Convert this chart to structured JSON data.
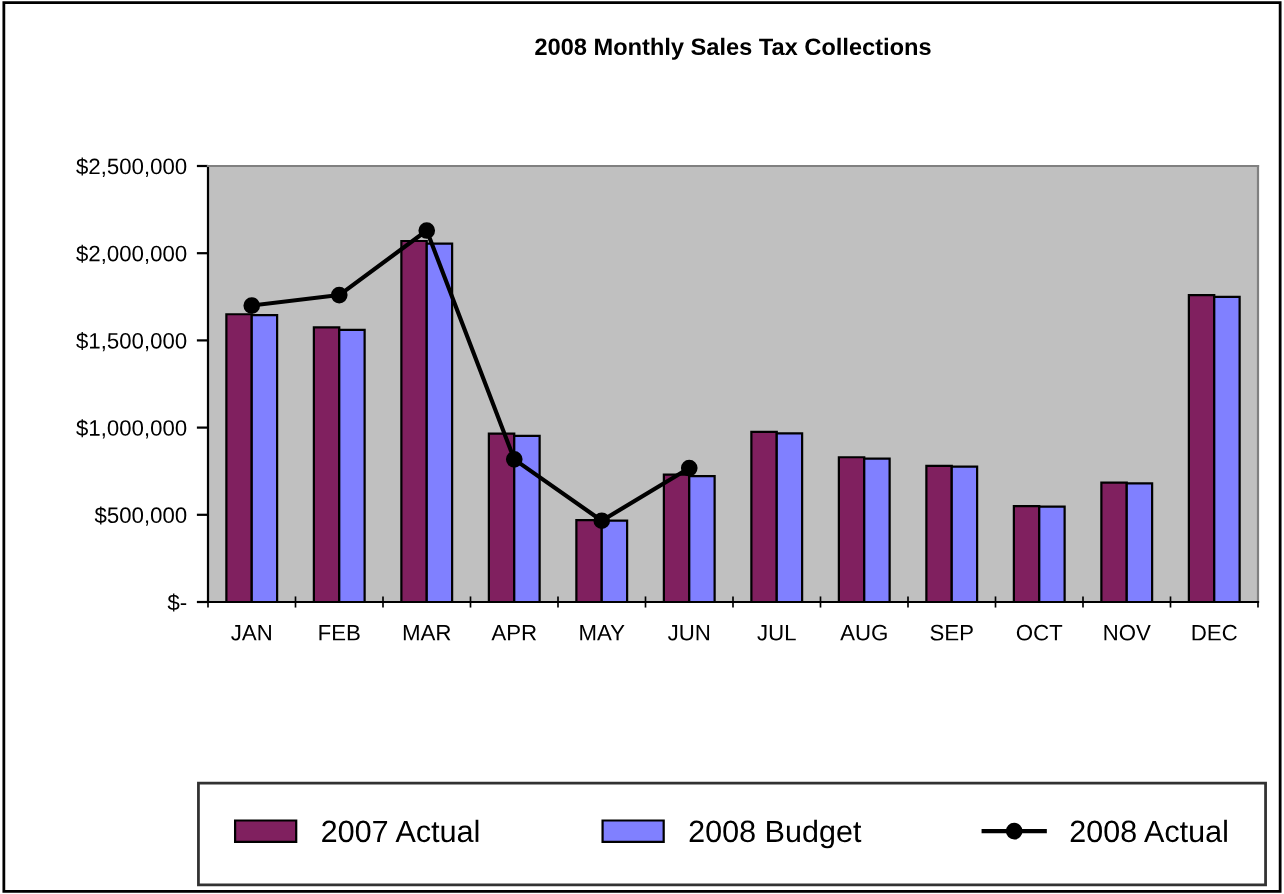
{
  "chart_data": {
    "type": "bar",
    "title": "2008 Monthly Sales Tax Collections",
    "categories": [
      "JAN",
      "FEB",
      "MAR",
      "APR",
      "MAY",
      "JUN",
      "JUL",
      "AUG",
      "SEP",
      "OCT",
      "NOV",
      "DEC"
    ],
    "series": [
      {
        "name": "2007 Actual",
        "color": "#80205f",
        "values": [
          1650000,
          1575000,
          2070000,
          965000,
          470000,
          730000,
          975000,
          830000,
          780000,
          550000,
          685000,
          1760000
        ]
      },
      {
        "name": "2008 Budget",
        "color": "#8080ff",
        "values": [
          1645000,
          1560000,
          2055000,
          952000,
          466000,
          722000,
          967000,
          822000,
          776000,
          547000,
          680000,
          1750000
        ]
      },
      {
        "name": "2008 Actual",
        "type": "line",
        "color": "#000000",
        "marker": "circle",
        "values": [
          1700000,
          1760000,
          2130000,
          818000,
          466000,
          768000,
          null,
          null,
          null,
          null,
          null,
          null
        ]
      }
    ],
    "ylim": [
      0,
      2500000
    ],
    "yticks": [
      {
        "value": 0,
        "label": "$-"
      },
      {
        "value": 500000,
        "label": "$500,000"
      },
      {
        "value": 1000000,
        "label": "$1,000,000"
      },
      {
        "value": 1500000,
        "label": "$1,500,000"
      },
      {
        "value": 2000000,
        "label": "$2,000,000"
      },
      {
        "value": 2500000,
        "label": "$2,500,000"
      }
    ],
    "grid": false,
    "legend": "bottom"
  }
}
